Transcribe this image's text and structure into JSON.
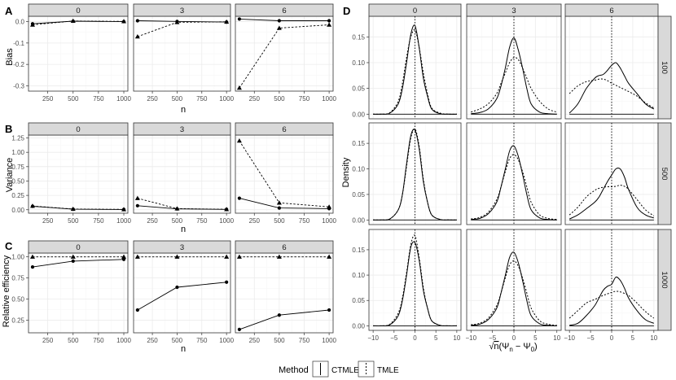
{
  "figure": {
    "panel_letters": [
      "A",
      "B",
      "C",
      "D"
    ]
  },
  "legend": {
    "title": "Method",
    "items": [
      {
        "label": "CTMLE",
        "dash": "solid"
      },
      {
        "label": "TMLE",
        "dash": "dotted"
      }
    ]
  },
  "colors": {
    "strip_fill": "#d9d9d9",
    "strip_border": "#333333",
    "grid_major": "#ebebeb",
    "grid_minor": "#f5f5f5",
    "line": "#000000"
  },
  "chart_data": [
    {
      "id": "A",
      "type": "line",
      "xlabel": "n",
      "ylabel": "Bias",
      "facets": [
        "0",
        "3",
        "6"
      ],
      "x": [
        100,
        500,
        1000
      ],
      "xlim": [
        60,
        1040
      ],
      "ylim": [
        -0.325,
        0.025
      ],
      "xticks": [
        250,
        500,
        750,
        1000
      ],
      "yticks": [
        0.0,
        -0.1,
        -0.2,
        -0.3
      ],
      "ytick_labels": [
        "0.0",
        "-0.1",
        "-0.2",
        "-0.3"
      ],
      "series": [
        {
          "name": "CTMLE",
          "marker": "circle",
          "values": [
            [
              -0.01,
              0.002,
              0.0
            ],
            [
              0.004,
              0.001,
              -0.002
            ],
            [
              0.012,
              0.004,
              0.004
            ]
          ]
        },
        {
          "name": "TMLE",
          "marker": "triangle",
          "values": [
            [
              -0.015,
              0.003,
              0.001
            ],
            [
              -0.07,
              -0.003,
              -0.001
            ],
            [
              -0.31,
              -0.03,
              -0.015
            ]
          ]
        }
      ]
    },
    {
      "id": "B",
      "type": "line",
      "xlabel": "n",
      "ylabel": "Variance",
      "facets": [
        "0",
        "3",
        "6"
      ],
      "x": [
        100,
        500,
        1000
      ],
      "xlim": [
        60,
        1040
      ],
      "ylim": [
        -0.06,
        1.3
      ],
      "xticks": [
        250,
        500,
        750,
        1000
      ],
      "yticks": [
        0.0,
        0.25,
        0.5,
        0.75,
        1.0,
        1.25
      ],
      "ytick_labels": [
        "0.00",
        "0.25",
        "0.50",
        "0.75",
        "1.00",
        "1.25"
      ],
      "series": [
        {
          "name": "CTMLE",
          "marker": "circle",
          "values": [
            [
              0.06,
              0.01,
              0.005
            ],
            [
              0.07,
              0.015,
              0.007
            ],
            [
              0.2,
              0.03,
              0.02
            ]
          ]
        },
        {
          "name": "TMLE",
          "marker": "triangle",
          "values": [
            [
              0.065,
              0.012,
              0.006
            ],
            [
              0.2,
              0.02,
              0.008
            ],
            [
              1.2,
              0.12,
              0.05
            ]
          ]
        }
      ]
    },
    {
      "id": "C",
      "type": "line",
      "xlabel": "n",
      "ylabel": "Relative efficiency",
      "facets": [
        "0",
        "3",
        "6"
      ],
      "x": [
        100,
        500,
        1000
      ],
      "xlim": [
        60,
        1040
      ],
      "ylim": [
        0.1,
        1.045
      ],
      "xticks": [
        250,
        500,
        750,
        1000
      ],
      "yticks": [
        0.25,
        0.5,
        0.75,
        1.0
      ],
      "ytick_labels": [
        "0.25",
        "0.50",
        "0.75",
        "1.00"
      ],
      "series": [
        {
          "name": "CTMLE",
          "marker": "circle",
          "values": [
            [
              0.88,
              0.95,
              0.97
            ],
            [
              0.37,
              0.64,
              0.7
            ],
            [
              0.14,
              0.31,
              0.37
            ]
          ]
        },
        {
          "name": "TMLE",
          "marker": "triangle",
          "values": [
            [
              1.0,
              1.0,
              1.0
            ],
            [
              1.0,
              1.0,
              1.0
            ],
            [
              1.0,
              1.0,
              1.0
            ]
          ]
        }
      ]
    },
    {
      "id": "D",
      "type": "line",
      "xlabel": "√n(Ψn − Ψ0)",
      "xlabel_math": {
        "root": "√",
        "n": "n",
        "open": "(",
        "psi": "Ψ",
        "sub_n": "n",
        "minus": " − ",
        "sub_0": "0",
        "close": ")"
      },
      "ylabel": "Density",
      "col_facets": [
        "0",
        "3",
        "6"
      ],
      "row_facets": [
        "100",
        "500",
        "1000"
      ],
      "xlim": [
        -11,
        11
      ],
      "ylim": [
        -0.009,
        0.19
      ],
      "xticks": [
        -10,
        -5,
        0,
        5,
        10
      ],
      "xtick_labels": [
        "−10",
        "−5",
        "0",
        "5",
        "10"
      ],
      "yticks": [
        0.0,
        0.05,
        0.1,
        0.15
      ],
      "ytick_labels": [
        "0.00",
        "0.05",
        "0.10",
        "0.15"
      ],
      "vline_x": 0,
      "density_x": [
        -10,
        -8,
        -6,
        -4,
        -3,
        -2,
        -1,
        0,
        1,
        2,
        3,
        4,
        6,
        8,
        10
      ],
      "series": [
        {
          "name": "CTMLE",
          "dash": "solid",
          "rows": [
            [
              [
                0,
                0,
                0.002,
                0.02,
                0.05,
                0.1,
                0.155,
                0.172,
                0.13,
                0.07,
                0.035,
                0.01,
                0.001,
                0,
                0
              ],
              [
                0.001,
                0.003,
                0.01,
                0.03,
                0.055,
                0.09,
                0.13,
                0.148,
                0.125,
                0.09,
                0.05,
                0.02,
                0.004,
                0.001,
                0
              ],
              [
                0.002,
                0.02,
                0.05,
                0.07,
                0.075,
                0.077,
                0.085,
                0.095,
                0.1,
                0.09,
                0.075,
                0.06,
                0.04,
                0.02,
                0.01
              ]
            ],
            [
              [
                0,
                0,
                0.002,
                0.02,
                0.05,
                0.11,
                0.165,
                0.176,
                0.14,
                0.075,
                0.035,
                0.01,
                0.001,
                0,
                0
              ],
              [
                0.001,
                0.003,
                0.012,
                0.035,
                0.065,
                0.1,
                0.135,
                0.145,
                0.125,
                0.09,
                0.05,
                0.02,
                0.004,
                0.001,
                0
              ],
              [
                0.002,
                0.01,
                0.022,
                0.035,
                0.045,
                0.06,
                0.075,
                0.088,
                0.1,
                0.1,
                0.085,
                0.06,
                0.025,
                0.01,
                0.004
              ]
            ],
            [
              [
                0,
                0,
                0.002,
                0.02,
                0.05,
                0.1,
                0.155,
                0.164,
                0.13,
                0.07,
                0.035,
                0.01,
                0.001,
                0,
                0
              ],
              [
                0.001,
                0.003,
                0.012,
                0.035,
                0.065,
                0.1,
                0.135,
                0.145,
                0.125,
                0.09,
                0.05,
                0.02,
                0.004,
                0.001,
                0
              ],
              [
                0.001,
                0.005,
                0.02,
                0.04,
                0.055,
                0.07,
                0.078,
                0.082,
                0.096,
                0.09,
                0.075,
                0.055,
                0.03,
                0.012,
                0.005
              ]
            ]
          ]
        },
        {
          "name": "TMLE",
          "dash": "dotted",
          "rows": [
            [
              [
                0,
                0,
                0.003,
                0.025,
                0.06,
                0.11,
                0.15,
                0.163,
                0.13,
                0.08,
                0.04,
                0.012,
                0.002,
                0,
                0
              ],
              [
                0.004,
                0.01,
                0.02,
                0.04,
                0.06,
                0.08,
                0.1,
                0.11,
                0.106,
                0.09,
                0.07,
                0.05,
                0.025,
                0.01,
                0.004
              ],
              [
                0.04,
                0.055,
                0.063,
                0.066,
                0.068,
                0.068,
                0.065,
                0.06,
                0.056,
                0.052,
                0.048,
                0.044,
                0.035,
                0.022,
                0.012
              ]
            ],
            [
              [
                0,
                0,
                0.002,
                0.02,
                0.05,
                0.105,
                0.16,
                0.178,
                0.145,
                0.08,
                0.035,
                0.01,
                0.001,
                0,
                0
              ],
              [
                0.002,
                0.005,
                0.015,
                0.04,
                0.065,
                0.095,
                0.12,
                0.128,
                0.118,
                0.095,
                0.065,
                0.035,
                0.01,
                0.003,
                0.001
              ],
              [
                0.01,
                0.025,
                0.045,
                0.058,
                0.062,
                0.064,
                0.065,
                0.065,
                0.066,
                0.068,
                0.066,
                0.06,
                0.04,
                0.02,
                0.008
              ]
            ],
            [
              [
                0,
                0,
                0.003,
                0.025,
                0.055,
                0.105,
                0.16,
                0.178,
                0.135,
                0.075,
                0.035,
                0.01,
                0.001,
                0,
                0
              ],
              [
                0.002,
                0.005,
                0.015,
                0.04,
                0.065,
                0.095,
                0.12,
                0.128,
                0.118,
                0.095,
                0.065,
                0.035,
                0.01,
                0.003,
                0.001
              ],
              [
                0.015,
                0.03,
                0.045,
                0.052,
                0.056,
                0.06,
                0.063,
                0.066,
                0.068,
                0.067,
                0.064,
                0.06,
                0.045,
                0.028,
                0.015
              ]
            ]
          ]
        }
      ]
    }
  ]
}
